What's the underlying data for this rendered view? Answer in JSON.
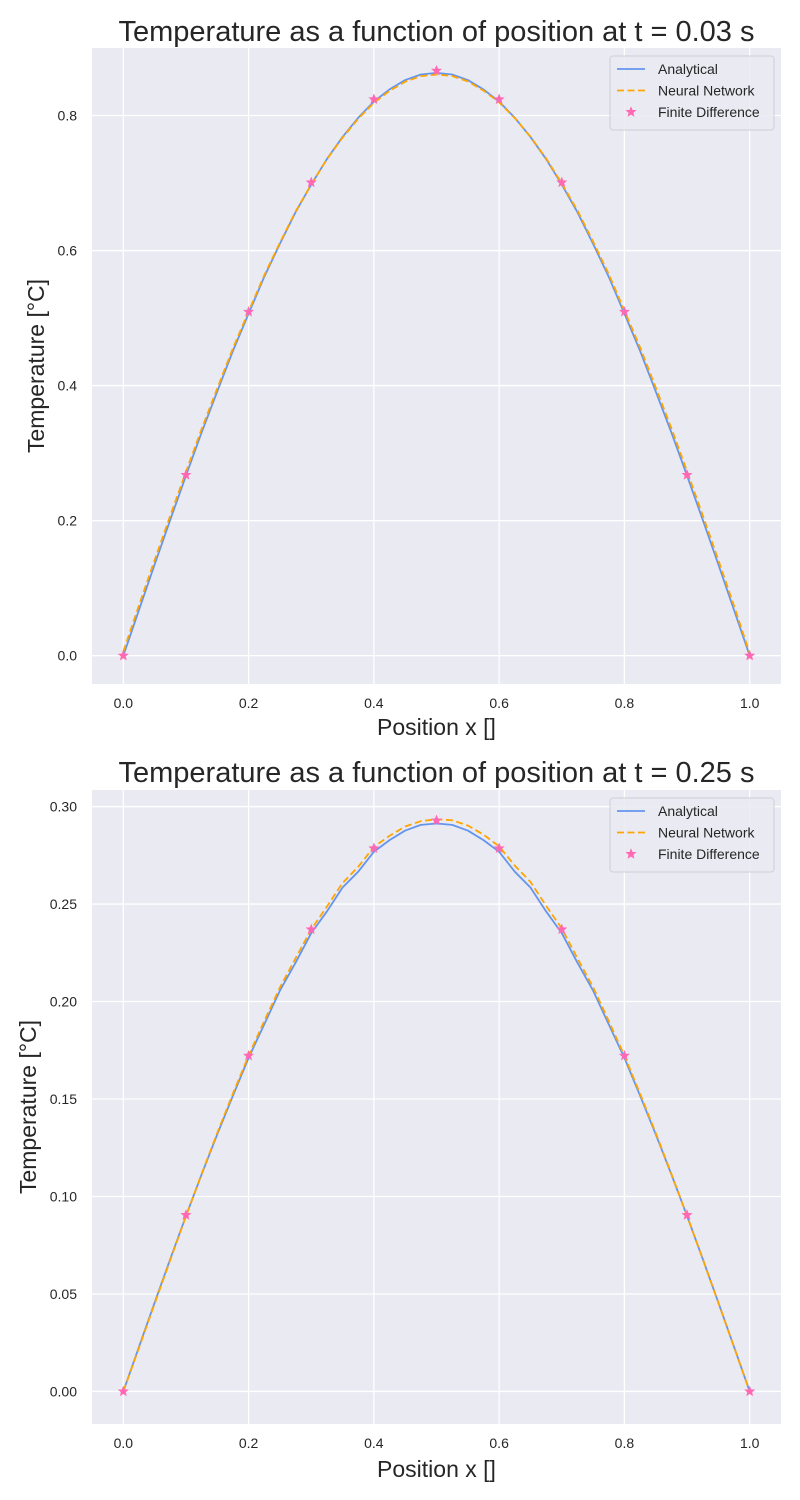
{
  "chart_data": [
    {
      "type": "line",
      "title": "Temperature as a function of position at t = 0.03 s",
      "xlabel": "Position x []",
      "ylabel": "Temperature [°C]",
      "xlim": [
        -0.05,
        1.05
      ],
      "ylim": [
        -0.042,
        0.9
      ],
      "xticks": [
        0.0,
        0.2,
        0.4,
        0.6,
        0.8,
        1.0
      ],
      "xtick_labels": [
        "0.0",
        "0.2",
        "0.4",
        "0.6",
        "0.8",
        "1.0"
      ],
      "yticks": [
        0.0,
        0.2,
        0.4,
        0.6,
        0.8
      ],
      "ytick_labels": [
        "0.0",
        "0.2",
        "0.4",
        "0.6",
        "0.8"
      ],
      "grid": true,
      "legend_position": "top-right",
      "series": [
        {
          "name": "Analytical",
          "style": "solid",
          "color": "#6495ED",
          "x": [
            0.0,
            0.025,
            0.05,
            0.075,
            0.1,
            0.125,
            0.15,
            0.175,
            0.2,
            0.225,
            0.25,
            0.275,
            0.3,
            0.325,
            0.35,
            0.375,
            0.4,
            0.425,
            0.45,
            0.475,
            0.5,
            0.525,
            0.55,
            0.575,
            0.6,
            0.625,
            0.65,
            0.675,
            0.7,
            0.725,
            0.75,
            0.775,
            0.8,
            0.825,
            0.85,
            0.875,
            0.9,
            0.925,
            0.95,
            0.975,
            1.0
          ],
          "y": [
            0.0,
            0.0676,
            0.135,
            0.2013,
            0.2666,
            0.3305,
            0.3914,
            0.4514,
            0.5065,
            0.5611,
            0.61,
            0.6568,
            0.6977,
            0.7355,
            0.7683,
            0.7966,
            0.8206,
            0.8386,
            0.8525,
            0.8608,
            0.8631,
            0.8608,
            0.8525,
            0.8386,
            0.8206,
            0.7966,
            0.7683,
            0.7355,
            0.6977,
            0.6568,
            0.61,
            0.5611,
            0.5065,
            0.4514,
            0.3914,
            0.3305,
            0.2666,
            0.2013,
            0.135,
            0.0676,
            0.0
          ]
        },
        {
          "name": "Neural Network",
          "style": "dashed",
          "color": "#FFA500",
          "x": [
            0.0,
            0.025,
            0.05,
            0.075,
            0.1,
            0.125,
            0.15,
            0.175,
            0.2,
            0.225,
            0.25,
            0.275,
            0.3,
            0.325,
            0.35,
            0.375,
            0.4,
            0.425,
            0.45,
            0.475,
            0.5,
            0.525,
            0.55,
            0.575,
            0.6,
            0.625,
            0.65,
            0.675,
            0.7,
            0.725,
            0.75,
            0.775,
            0.8,
            0.825,
            0.85,
            0.875,
            0.9,
            0.925,
            0.95,
            0.975,
            1.0
          ],
          "y": [
            0.006,
            0.0746,
            0.1415,
            0.2075,
            0.2722,
            0.3356,
            0.3959,
            0.4553,
            0.5096,
            0.5634,
            0.6116,
            0.6578,
            0.698,
            0.7352,
            0.7673,
            0.7951,
            0.8187,
            0.8364,
            0.8501,
            0.8583,
            0.8607,
            0.8585,
            0.8506,
            0.837,
            0.8195,
            0.7962,
            0.7686,
            0.7365,
            0.6995,
            0.6594,
            0.6133,
            0.5651,
            0.5112,
            0.4567,
            0.3972,
            0.3367,
            0.2731,
            0.2079,
            0.1414,
            0.0738,
            0.0035
          ]
        },
        {
          "name": "Finite Difference",
          "style": "markers",
          "marker": "star",
          "color": "#FF69B4",
          "x": [
            0.0,
            0.1,
            0.2,
            0.3,
            0.4,
            0.5,
            0.6,
            0.7,
            0.8,
            0.9,
            1.0
          ],
          "y": [
            0.0,
            0.2677,
            0.5092,
            0.7009,
            0.824,
            0.8664,
            0.824,
            0.7009,
            0.5092,
            0.2677,
            0.0
          ]
        }
      ]
    },
    {
      "type": "line",
      "title": "Temperature as a function of position at t = 0.25 s",
      "xlabel": "Position x []",
      "ylabel": "Temperature [°C]",
      "xlim": [
        -0.05,
        1.05
      ],
      "ylim": [
        -0.0167,
        0.3085
      ],
      "xticks": [
        0.0,
        0.2,
        0.4,
        0.6,
        0.8,
        1.0
      ],
      "xtick_labels": [
        "0.0",
        "0.2",
        "0.4",
        "0.6",
        "0.8",
        "1.0"
      ],
      "yticks": [
        0.0,
        0.05,
        0.1,
        0.15,
        0.2,
        0.25,
        0.3
      ],
      "ytick_labels": [
        "0.00",
        "0.05",
        "0.10",
        "0.15",
        "0.20",
        "0.25",
        "0.30"
      ],
      "grid": true,
      "legend_position": "top-right",
      "series": [
        {
          "name": "Analytical",
          "style": "solid",
          "color": "#6495ED",
          "x": [
            0.0,
            0.025,
            0.05,
            0.075,
            0.1,
            0.125,
            0.15,
            0.175,
            0.2,
            0.225,
            0.25,
            0.275,
            0.3,
            0.325,
            0.35,
            0.375,
            0.4,
            0.425,
            0.45,
            0.475,
            0.5,
            0.525,
            0.55,
            0.575,
            0.6,
            0.625,
            0.65,
            0.675,
            0.7,
            0.725,
            0.75,
            0.775,
            0.8,
            0.825,
            0.85,
            0.875,
            0.9,
            0.925,
            0.95,
            0.975,
            1.0
          ],
          "y": [
            0.0,
            0.0229,
            0.0456,
            0.068,
            0.09,
            0.1113,
            0.1319,
            0.1517,
            0.1711,
            0.1883,
            0.2056,
            0.2199,
            0.2351,
            0.2462,
            0.2585,
            0.2666,
            0.2768,
            0.2828,
            0.2877,
            0.2906,
            0.2913,
            0.2906,
            0.2877,
            0.2828,
            0.2768,
            0.2666,
            0.2585,
            0.2462,
            0.2351,
            0.2199,
            0.2056,
            0.1883,
            0.1711,
            0.1517,
            0.1319,
            0.1113,
            0.09,
            0.068,
            0.0456,
            0.0229,
            0.0
          ]
        },
        {
          "name": "Neural Network",
          "style": "dashed",
          "color": "#FFA500",
          "x": [
            0.0,
            0.025,
            0.05,
            0.075,
            0.1,
            0.125,
            0.15,
            0.175,
            0.2,
            0.225,
            0.25,
            0.275,
            0.3,
            0.325,
            0.35,
            0.375,
            0.4,
            0.425,
            0.45,
            0.475,
            0.5,
            0.525,
            0.55,
            0.575,
            0.6,
            0.625,
            0.65,
            0.675,
            0.7,
            0.725,
            0.75,
            0.775,
            0.8,
            0.825,
            0.85,
            0.875,
            0.9,
            0.925,
            0.95,
            0.975,
            1.0
          ],
          "y": [
            0.0,
            0.0224,
            0.045,
            0.0675,
            0.0898,
            0.1116,
            0.1326,
            0.1528,
            0.1722,
            0.19,
            0.2072,
            0.2222,
            0.237,
            0.2487,
            0.2608,
            0.2691,
            0.2793,
            0.285,
            0.2898,
            0.2925,
            0.2935,
            0.293,
            0.2903,
            0.2856,
            0.2796,
            0.2697,
            0.2614,
            0.2491,
            0.2375,
            0.2222,
            0.2074,
            0.19,
            0.1722,
            0.1527,
            0.1326,
            0.1116,
            0.0901,
            0.068,
            0.0455,
            0.0228,
            0.0
          ]
        },
        {
          "name": "Finite Difference",
          "style": "markers",
          "marker": "star",
          "color": "#FF69B4",
          "x": [
            0.0,
            0.1,
            0.2,
            0.3,
            0.4,
            0.5,
            0.6,
            0.7,
            0.8,
            0.9,
            1.0
          ],
          "y": [
            0.0,
            0.0905,
            0.1722,
            0.237,
            0.2786,
            0.2929,
            0.2786,
            0.237,
            0.1722,
            0.0905,
            0.0
          ]
        }
      ]
    }
  ]
}
